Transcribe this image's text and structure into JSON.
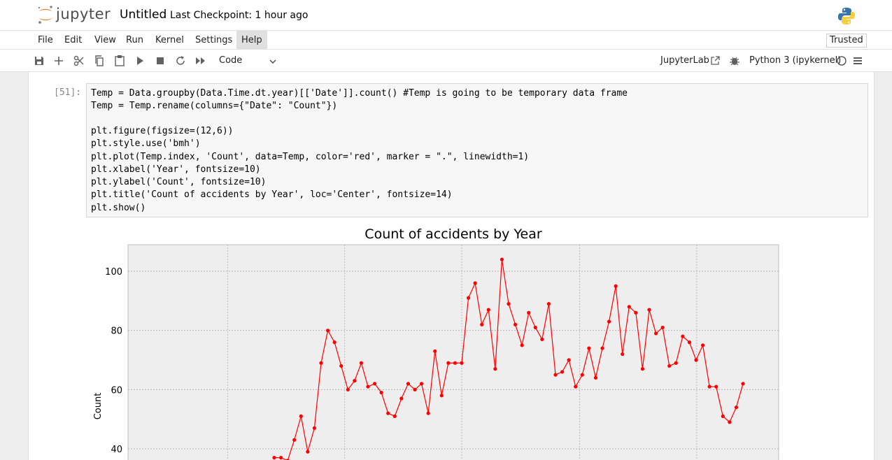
{
  "header": {
    "logo_text": "jupyter",
    "notebook_title": "Untitled",
    "checkpoint": "Last Checkpoint: 1 hour ago"
  },
  "menu": {
    "items": [
      "File",
      "Edit",
      "View",
      "Run",
      "Kernel",
      "Settings",
      "Help"
    ],
    "trusted": "Trusted"
  },
  "toolbar": {
    "cell_type": "Code",
    "jupyterlab": "JupyterLab",
    "kernel": "Python 3 (ipykernel)"
  },
  "cell": {
    "prompt": "[51]:",
    "lines": [
      "Temp = Data.groupby(Data.Time.dt.year)[['Date']].count() #Temp is going to be temporary data frame",
      "Temp = Temp.rename(columns={\"Date\": \"Count\"})",
      "",
      "plt.figure(figsize=(12,6))",
      "plt.style.use('bmh')",
      "plt.plot(Temp.index, 'Count', data=Temp, color='red', marker = \".\", linewidth=1)",
      "plt.xlabel('Year', fontsize=10)",
      "plt.ylabel('Count', fontsize=10)",
      "plt.title('Count of accidents by Year', loc='Center', fontsize=14)",
      "plt.show()"
    ]
  },
  "colors": {
    "line": "#ff0000",
    "plot_bg": "#eeeeee",
    "grid": "#b0b0b0"
  },
  "chart_data": {
    "type": "line",
    "title": "Count of accidents by Year",
    "xlabel": "",
    "ylabel": "Count",
    "yticks": [
      40,
      60,
      80,
      100
    ],
    "ylim": [
      31,
      109
    ],
    "grid": true,
    "series": [
      {
        "values": [
          37,
          37,
          36,
          43,
          51,
          39,
          47,
          69,
          80,
          76,
          68,
          60,
          63,
          69,
          61,
          62,
          59,
          52,
          51,
          57,
          62,
          60,
          62,
          52,
          73,
          58,
          69,
          69,
          69,
          91,
          96,
          82,
          87,
          67,
          104,
          89,
          82,
          75,
          86,
          81,
          77,
          89,
          65,
          66,
          70,
          61,
          65,
          74,
          64,
          74,
          83,
          95,
          72,
          88,
          86,
          67,
          87,
          79,
          81,
          68,
          69,
          78,
          76,
          70,
          75,
          61,
          61,
          51,
          49,
          54,
          62
        ]
      }
    ]
  }
}
